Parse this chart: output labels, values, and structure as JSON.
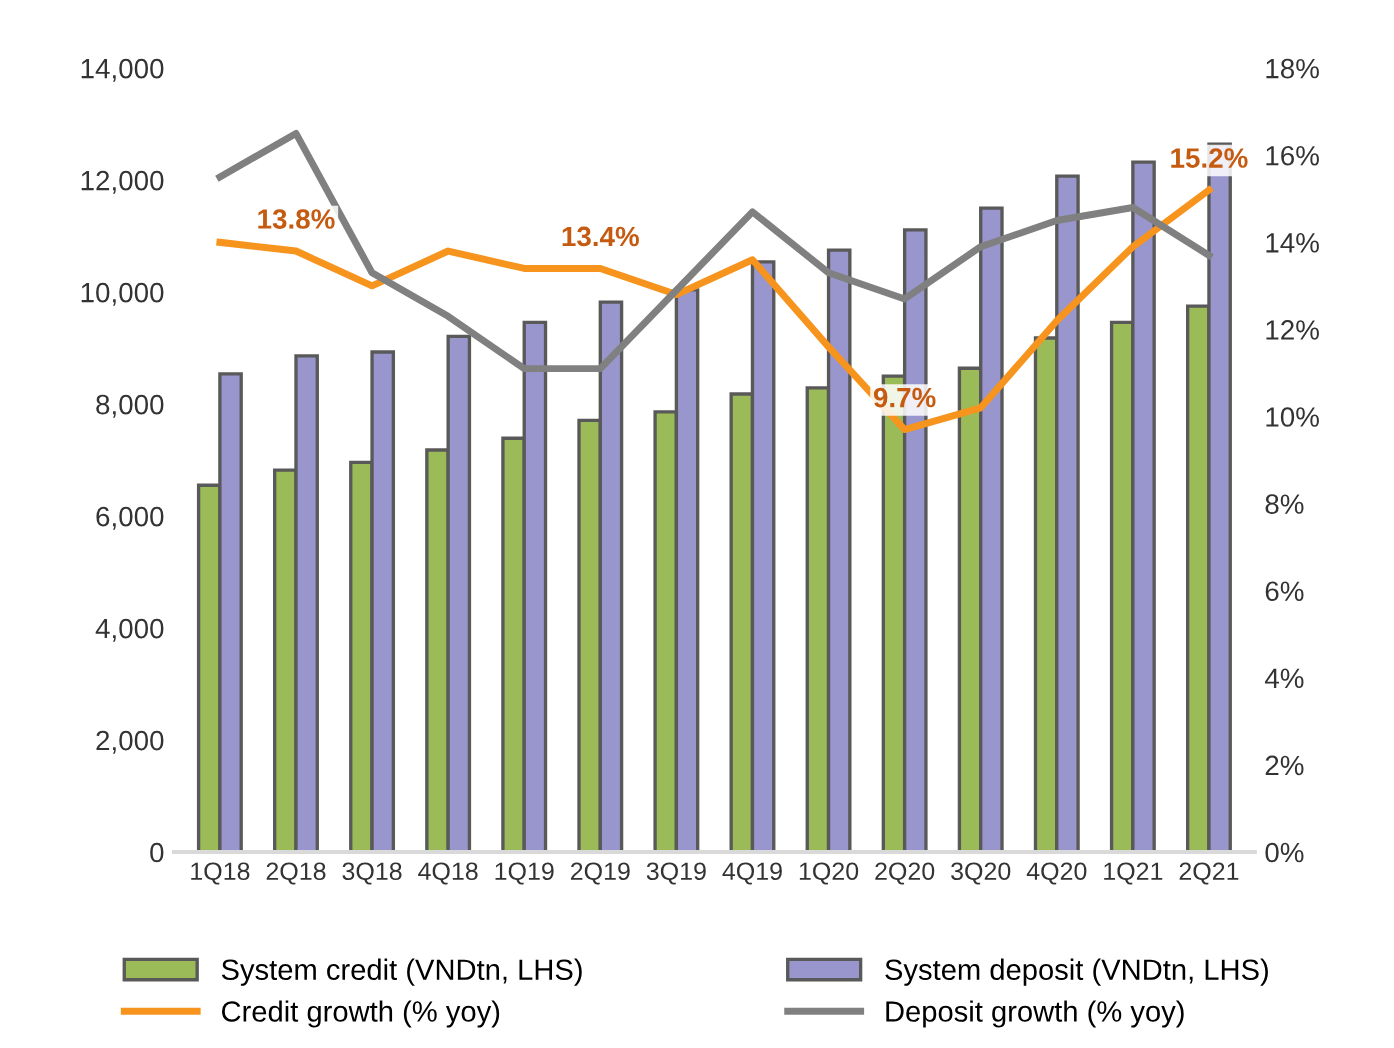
{
  "chart_data": {
    "type": "bar",
    "categories": [
      "1Q18",
      "2Q18",
      "3Q18",
      "4Q18",
      "1Q19",
      "2Q19",
      "3Q19",
      "4Q19",
      "1Q20",
      "2Q20",
      "3Q20",
      "4Q20",
      "1Q21",
      "2Q21"
    ],
    "series": [
      {
        "name": "System credit (VNDtn, LHS)",
        "color": "#9bbb59",
        "values": [
          6550,
          6820,
          6960,
          7180,
          7390,
          7710,
          7860,
          8180,
          8290,
          8500,
          8640,
          9180,
          9460,
          9750
        ]
      },
      {
        "name": "System deposit (VNDtn, LHS)",
        "color": "#9896cc",
        "values": [
          8540,
          8860,
          8930,
          9210,
          9460,
          9820,
          10040,
          10540,
          10750,
          11110,
          11500,
          12070,
          12320,
          12640
        ]
      },
      {
        "name": "Credit growth (% yoy)",
        "type": "line",
        "axis": "y2",
        "color": "#f7941d",
        "values": [
          14.0,
          13.8,
          13.0,
          13.8,
          13.4,
          13.4,
          12.8,
          13.6,
          11.6,
          9.7,
          10.2,
          12.2,
          13.9,
          15.2
        ],
        "value_labels": [
          null,
          "13.8%",
          null,
          null,
          null,
          "13.4%",
          null,
          null,
          null,
          "9.7%",
          null,
          null,
          null,
          "15.2%"
        ]
      },
      {
        "name": "Deposit growth (% yoy)",
        "type": "line",
        "axis": "y2",
        "color": "#808080",
        "values": [
          15.5,
          16.5,
          13.3,
          12.3,
          11.1,
          11.1,
          12.9,
          14.7,
          13.3,
          12.7,
          13.9,
          14.5,
          14.8,
          13.7
        ]
      }
    ],
    "ylim": [
      0,
      14000
    ],
    "yticks": [
      {
        "value": 0,
        "label": "0"
      },
      {
        "value": 2000,
        "label": "2,000"
      },
      {
        "value": 4000,
        "label": "4,000"
      },
      {
        "value": 6000,
        "label": "6,000"
      },
      {
        "value": 8000,
        "label": "8,000"
      },
      {
        "value": 10000,
        "label": "10,000"
      },
      {
        "value": 12000,
        "label": "12,000"
      },
      {
        "value": 14000,
        "label": "14,000"
      }
    ],
    "y2lim": [
      0,
      18
    ],
    "y2ticks": [
      {
        "value": 0,
        "label": "0%"
      },
      {
        "value": 2,
        "label": "2%"
      },
      {
        "value": 4,
        "label": "4%"
      },
      {
        "value": 6,
        "label": "6%"
      },
      {
        "value": 8,
        "label": "8%"
      },
      {
        "value": 10,
        "label": "10%"
      },
      {
        "value": 12,
        "label": "12%"
      },
      {
        "value": 14,
        "label": "14%"
      },
      {
        "value": 16,
        "label": "16%"
      },
      {
        "value": 18,
        "label": "18%"
      }
    ],
    "grid": false,
    "legend": "bottom",
    "marker": "none",
    "line_style": "solid"
  }
}
